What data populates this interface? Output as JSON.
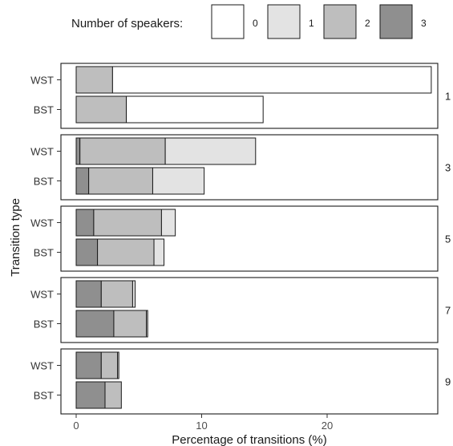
{
  "chart_data": {
    "type": "bar",
    "orientation": "horizontal",
    "stacked": true,
    "xlabel": "Percentage of transitions (%)",
    "ylabel": "Transition type",
    "xlim": [
      0,
      29
    ],
    "xticks": [
      0,
      10,
      20
    ],
    "categories": [
      "WST",
      "BST"
    ],
    "legend": {
      "title": "Number of speakers:",
      "position": "top",
      "items": [
        {
          "label": "0",
          "color": "#ffffff"
        },
        {
          "label": "1",
          "color": "#e3e3e3"
        },
        {
          "label": "2",
          "color": "#bebebe"
        },
        {
          "label": "3",
          "color": "#8f8f8f"
        }
      ]
    },
    "facets": [
      {
        "label": "1",
        "bars": [
          {
            "category": "WST",
            "segments": {
              "3": 0.0,
              "2": 2.9,
              "1": 0.0,
              "0": 25.4
            }
          },
          {
            "category": "BST",
            "segments": {
              "3": 0.0,
              "2": 4.0,
              "1": 0.0,
              "0": 10.9
            }
          }
        ]
      },
      {
        "label": "3",
        "bars": [
          {
            "category": "WST",
            "segments": {
              "3": 0.3,
              "2": 6.8,
              "1": 7.2,
              "0": 0.0
            }
          },
          {
            "category": "BST",
            "segments": {
              "3": 1.0,
              "2": 5.1,
              "1": 4.1,
              "0": 0.0
            }
          }
        ]
      },
      {
        "label": "5",
        "bars": [
          {
            "category": "WST",
            "segments": {
              "3": 1.4,
              "2": 5.4,
              "1": 1.1,
              "0": 0.0
            }
          },
          {
            "category": "BST",
            "segments": {
              "3": 1.7,
              "2": 4.5,
              "1": 0.8,
              "0": 0.0
            }
          }
        ]
      },
      {
        "label": "7",
        "bars": [
          {
            "category": "WST",
            "segments": {
              "3": 2.0,
              "2": 2.5,
              "1": 0.2,
              "0": 0.0
            }
          },
          {
            "category": "BST",
            "segments": {
              "3": 3.0,
              "2": 2.6,
              "1": 0.1,
              "0": 0.0
            }
          }
        ]
      },
      {
        "label": "9",
        "bars": [
          {
            "category": "WST",
            "segments": {
              "3": 2.0,
              "2": 1.3,
              "1": 0.1,
              "0": 0.0
            }
          },
          {
            "category": "BST",
            "segments": {
              "3": 2.3,
              "2": 1.3,
              "1": 0.0,
              "0": 0.0
            }
          }
        ]
      }
    ]
  }
}
